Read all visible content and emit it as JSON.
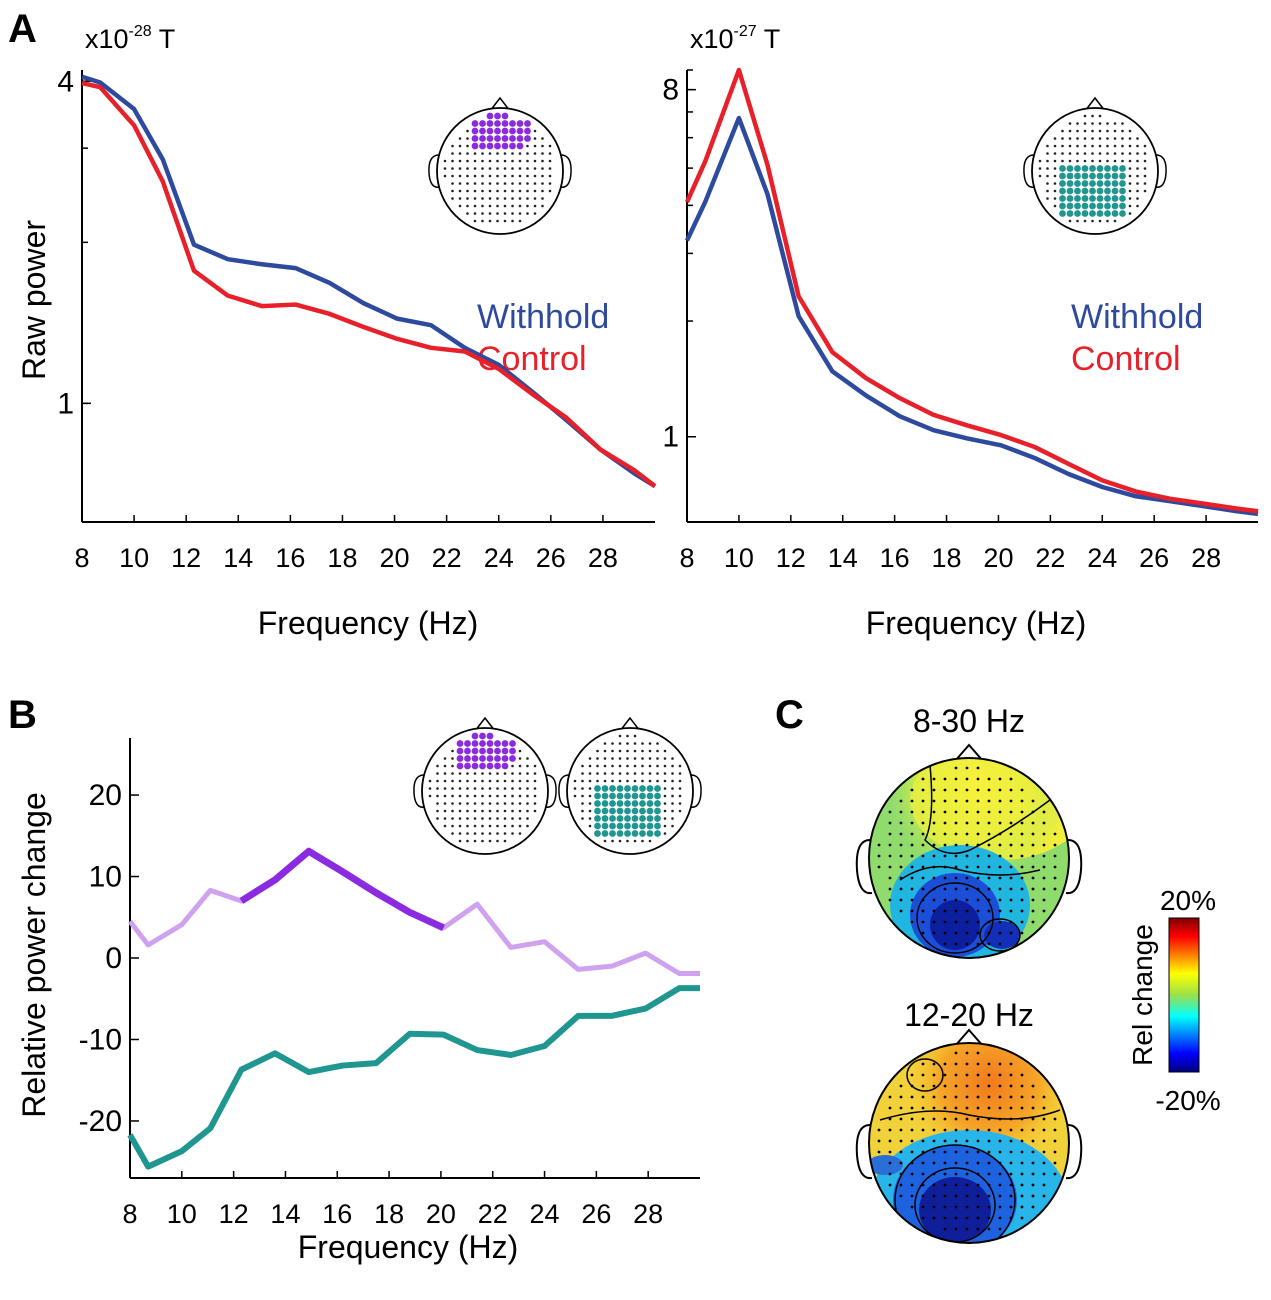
{
  "colors": {
    "withhold": "#2e4a9e",
    "control": "#e8202a",
    "purple_strong": "#8a2be2",
    "purple_light": "#cfa2f0",
    "teal": "#1f9690",
    "axis": "#000000"
  },
  "chart_data": [
    {
      "id": "A-left",
      "panel_label": "A",
      "type": "line",
      "scale_label": "x10",
      "scale_exponent": "-28",
      "scale_unit": "T",
      "ylabel": "Raw power",
      "xlabel": "Frequency (Hz)",
      "xlim": [
        8,
        30
      ],
      "ylim": [
        0.6,
        4.2
      ],
      "xticks": [
        8,
        10,
        12,
        14,
        16,
        18,
        20,
        22,
        24,
        26,
        28
      ],
      "yticks": [
        1,
        4
      ],
      "ytick_labels": [
        "1",
        "4"
      ],
      "x": [
        8,
        8.7,
        10,
        11.1,
        12.3,
        13.6,
        14.9,
        16.2,
        17.5,
        18.8,
        20.1,
        21.4,
        22.7,
        24.0,
        25.3,
        26.6,
        27.9,
        29.2,
        30
      ],
      "series": [
        {
          "name": "Withhold",
          "values": [
            4.08,
            3.98,
            3.55,
            2.86,
            1.98,
            1.86,
            1.82,
            1.79,
            1.68,
            1.54,
            1.44,
            1.4,
            1.27,
            1.18,
            1.05,
            0.93,
            0.82,
            0.74,
            0.7
          ]
        },
        {
          "name": "Control",
          "values": [
            3.97,
            3.9,
            3.31,
            2.6,
            1.77,
            1.59,
            1.52,
            1.53,
            1.47,
            1.39,
            1.32,
            1.27,
            1.25,
            1.16,
            1.04,
            0.94,
            0.82,
            0.75,
            0.7
          ]
        }
      ],
      "legend": [
        "Withhold",
        "Control"
      ],
      "legend_position": "right",
      "inset": "head-frontal-sensors-purple"
    },
    {
      "id": "A-right",
      "type": "line",
      "scale_label": "x10",
      "scale_exponent": "-27",
      "scale_unit": "T",
      "xlabel": "Frequency (Hz)",
      "xlim": [
        8,
        30
      ],
      "ylim": [
        0.6,
        9.0
      ],
      "xticks": [
        8,
        10,
        12,
        14,
        16,
        18,
        20,
        22,
        24,
        26,
        28
      ],
      "yticks": [
        1,
        8
      ],
      "ytick_labels": [
        "1",
        "8"
      ],
      "x": [
        8,
        8.7,
        10,
        11.1,
        12.3,
        13.6,
        14.9,
        16.2,
        17.5,
        18.8,
        20.1,
        21.4,
        22.7,
        24.0,
        25.3,
        26.6,
        27.9,
        29.2,
        30
      ],
      "series": [
        {
          "name": "Withhold",
          "values": [
            3.24,
            4.08,
            6.75,
            4.28,
            2.06,
            1.48,
            1.28,
            1.13,
            1.04,
            0.99,
            0.95,
            0.88,
            0.8,
            0.74,
            0.7,
            0.68,
            0.66,
            0.64,
            0.63
          ]
        },
        {
          "name": "Control",
          "values": [
            4.08,
            5.2,
            9.0,
            5.1,
            2.32,
            1.66,
            1.42,
            1.26,
            1.14,
            1.07,
            1.01,
            0.94,
            0.85,
            0.77,
            0.72,
            0.69,
            0.67,
            0.65,
            0.64
          ]
        }
      ],
      "legend": [
        "Withhold",
        "Control"
      ],
      "legend_position": "right",
      "inset": "head-posterior-sensors-teal"
    },
    {
      "id": "B",
      "panel_label": "B",
      "type": "line",
      "ylabel": "Relative power change",
      "xlabel": "Frequency (Hz)",
      "xlim": [
        8,
        30
      ],
      "ylim": [
        -27,
        27
      ],
      "xticks": [
        8,
        10,
        12,
        14,
        16,
        18,
        20,
        22,
        24,
        26,
        28
      ],
      "yticks": [
        -20,
        -10,
        0,
        10,
        20
      ],
      "ytick_labels": [
        "-20",
        "-10",
        "0",
        "10",
        "20"
      ],
      "x": [
        8,
        8.7,
        10,
        11.1,
        12.3,
        13.6,
        14.9,
        16.2,
        17.5,
        18.8,
        20.1,
        21.4,
        22.7,
        24.0,
        25.3,
        26.6,
        27.9,
        29.2,
        30
      ],
      "series": [
        {
          "name": "Frontal sensors",
          "values": [
            4.5,
            1.6,
            4.1,
            8.3,
            7.0,
            9.6,
            13.1,
            10.6,
            8.0,
            5.6,
            3.7,
            6.6,
            1.3,
            2.0,
            -1.4,
            -1.0,
            0.6,
            -1.9,
            -1.9
          ],
          "significant_range": [
            12.3,
            20.1
          ]
        },
        {
          "name": "Posterior sensors",
          "values": [
            -21.7,
            -25.6,
            -23.7,
            -20.9,
            -13.7,
            -11.7,
            -14.0,
            -13.2,
            -12.9,
            -9.3,
            -9.4,
            -11.3,
            -11.9,
            -10.8,
            -7.1,
            -7.1,
            -6.2,
            -3.7,
            -3.7
          ]
        }
      ],
      "insets": [
        "head-frontal-sensors-purple",
        "head-posterior-sensors-teal"
      ]
    },
    {
      "id": "C",
      "panel_label": "C",
      "type": "heatmap",
      "topomaps": [
        {
          "title": "8-30 Hz",
          "summary": "frontal increase, posterior decrease"
        },
        {
          "title": "12-20 Hz",
          "summary": "strong frontal increase, strong posterior decrease"
        }
      ],
      "colorbar": {
        "label": "Rel change",
        "max_label": "20%",
        "min_label": "-20%",
        "range": [
          -20,
          20
        ],
        "colormap": "jet"
      }
    }
  ]
}
